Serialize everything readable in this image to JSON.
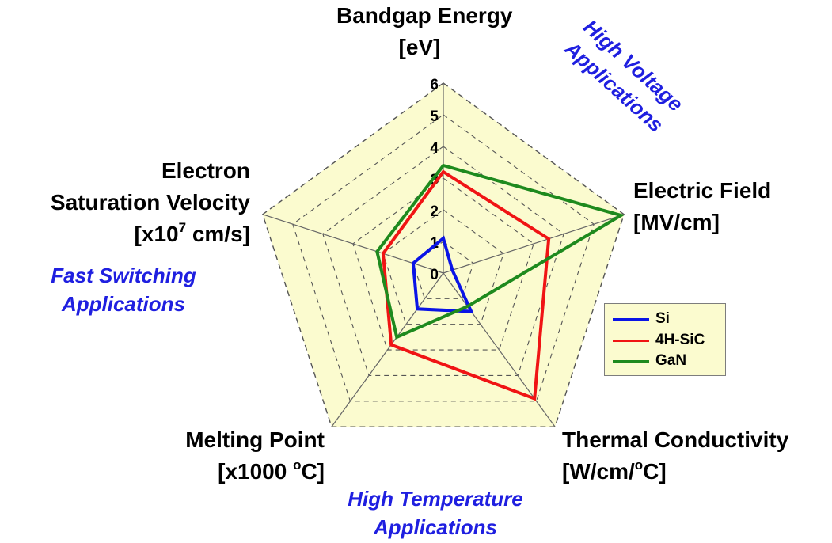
{
  "chart_data": {
    "type": "radar",
    "axes": [
      {
        "name": "Bandgap Energy",
        "unit_prefix": "[eV]",
        "unit_sup": "",
        "unit_suffix": ""
      },
      {
        "name": "Electric Field",
        "unit_prefix": "[MV/cm]",
        "unit_sup": "",
        "unit_suffix": ""
      },
      {
        "name": "Thermal Conductivity",
        "unit_prefix": "[W/cm/",
        "unit_sup": "o",
        "unit_suffix": "C]"
      },
      {
        "name": "Melting Point",
        "unit_prefix": "[x1000 ",
        "unit_sup": "o",
        "unit_suffix": "C]"
      },
      {
        "name": "Electron Saturation Velocity",
        "unit_prefix": "[x10",
        "unit_sup": "7",
        "unit_suffix": " cm/s]"
      }
    ],
    "rlim": [
      0,
      6
    ],
    "tick_labels": [
      "0",
      "1",
      "2",
      "3",
      "4",
      "5",
      "6"
    ],
    "grid": true,
    "legend_position": "right",
    "series": [
      {
        "name": "Si",
        "color": "#0a14e6",
        "values": [
          1.1,
          0.3,
          1.5,
          1.4,
          1.0
        ]
      },
      {
        "name": "4H-SiC",
        "color": "#f01414",
        "values": [
          3.2,
          3.5,
          4.9,
          2.8,
          2.0
        ]
      },
      {
        "name": "GaN",
        "color": "#1e8a1e",
        "values": [
          3.4,
          5.9,
          1.3,
          2.5,
          2.2
        ]
      }
    ],
    "annotations": [
      {
        "id": "high-voltage",
        "lines": [
          "High Voltage",
          "Applications"
        ]
      },
      {
        "id": "fast-switching",
        "lines": [
          "Fast Switching",
          "Applications"
        ]
      },
      {
        "id": "high-temperature",
        "lines": [
          "High Temperature",
          "Applications"
        ]
      }
    ]
  },
  "labels": {
    "bandgap_title": "Bandgap Energy",
    "bandgap_unit": "[eV]",
    "field_title": "Electric Field",
    "field_unit": "[MV/cm]",
    "thermal_title": "Thermal Conductivity",
    "thermal_unit_a": "[W/cm/",
    "thermal_unit_sup": "o",
    "thermal_unit_b": "C]",
    "melting_title": "Melting Point",
    "melting_unit_a": "[x1000 ",
    "melting_unit_sup": "o",
    "melting_unit_b": "C]",
    "velocity_title_1": "Electron",
    "velocity_title_2": "Saturation Velocity",
    "velocity_unit_a": "[x10",
    "velocity_unit_sup": "7",
    "velocity_unit_b": " cm/s]",
    "high_voltage_1": "High Voltage",
    "high_voltage_2": "Applications",
    "fast_switching_1": "Fast Switching",
    "fast_switching_2": "Applications",
    "high_temp_1": "High Temperature",
    "high_temp_2": "Applications"
  },
  "legend": {
    "items": [
      {
        "label": "Si",
        "color": "#0a14e6"
      },
      {
        "label": "4H-SiC",
        "color": "#f01414"
      },
      {
        "label": "GaN",
        "color": "#1e8a1e"
      }
    ]
  },
  "colors": {
    "plot_fill": "#fbfbcf",
    "grid": "#555555",
    "spoke": "#666666"
  }
}
